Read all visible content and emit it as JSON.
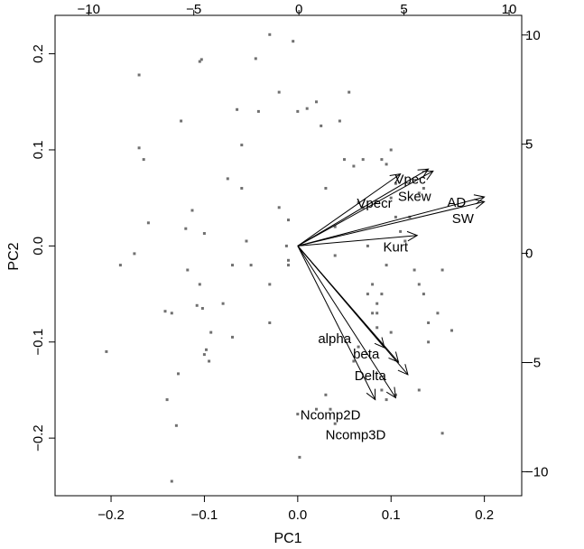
{
  "chart_data": {
    "type": "scatter",
    "subtype": "biplot",
    "xlabel": "PC1",
    "ylabel": "PC2",
    "xlim": [
      -0.26,
      0.24
    ],
    "ylim": [
      -0.26,
      0.24
    ],
    "top_axis_lim": [
      -11.6,
      10.6
    ],
    "right_axis_lim": [
      -11.1,
      10.9
    ],
    "x_ticks": [
      -0.2,
      -0.1,
      0.0,
      0.1,
      0.2
    ],
    "x_tick_labels": [
      "−0.2",
      "−0.1",
      "0.0",
      "0.1",
      "0.2"
    ],
    "y_ticks": [
      -0.2,
      -0.1,
      0.0,
      0.1,
      0.2
    ],
    "y_tick_labels": [
      "−0.2",
      "−0.1",
      "0.0",
      "0.1",
      "0.2"
    ],
    "top_ticks": [
      -10,
      -5,
      0,
      5,
      10
    ],
    "top_tick_labels": [
      "−10",
      "−5",
      "0",
      "5",
      "10"
    ],
    "right_ticks": [
      -10,
      -5,
      0,
      5,
      10
    ],
    "right_tick_labels": [
      "−10",
      "−5",
      "0",
      "5",
      "10"
    ],
    "grid": false,
    "point_color": "#707070",
    "arrow_color": "#000000",
    "points": [
      [
        -0.13,
        -0.187
      ],
      [
        -0.135,
        -0.245
      ],
      [
        -0.14,
        -0.16
      ],
      [
        -0.19,
        -0.02
      ],
      [
        -0.205,
        -0.11
      ],
      [
        -0.175,
        -0.008
      ],
      [
        -0.16,
        0.024
      ],
      [
        -0.165,
        0.09
      ],
      [
        -0.17,
        0.102
      ],
      [
        -0.17,
        0.178
      ],
      [
        -0.142,
        -0.068
      ],
      [
        -0.135,
        -0.07
      ],
      [
        -0.12,
        0.018
      ],
      [
        -0.125,
        0.13
      ],
      [
        -0.105,
        0.192
      ],
      [
        -0.103,
        0.194
      ],
      [
        -0.128,
        -0.133
      ],
      [
        -0.118,
        -0.025
      ],
      [
        -0.113,
        0.037
      ],
      [
        -0.108,
        -0.062
      ],
      [
        -0.102,
        -0.065
      ],
      [
        -0.105,
        -0.04
      ],
      [
        -0.1,
        -0.113
      ],
      [
        -0.095,
        -0.12
      ],
      [
        -0.093,
        -0.09
      ],
      [
        -0.098,
        -0.108
      ],
      [
        -0.1,
        0.013
      ],
      [
        -0.08,
        -0.06
      ],
      [
        -0.07,
        -0.095
      ],
      [
        -0.065,
        0.142
      ],
      [
        -0.06,
        0.06
      ],
      [
        -0.055,
        0.005
      ],
      [
        -0.07,
        -0.02
      ],
      [
        -0.075,
        0.07
      ],
      [
        -0.06,
        0.105
      ],
      [
        -0.05,
        -0.02
      ],
      [
        -0.045,
        0.195
      ],
      [
        -0.042,
        0.14
      ],
      [
        -0.03,
        -0.08
      ],
      [
        -0.03,
        0.22
      ],
      [
        -0.02,
        0.16
      ],
      [
        -0.02,
        0.04
      ],
      [
        -0.03,
        -0.04
      ],
      [
        -0.012,
        0.0
      ],
      [
        -0.01,
        -0.015
      ],
      [
        0.0,
        0.14
      ],
      [
        0.0,
        -0.175
      ],
      [
        0.01,
        0.143
      ],
      [
        0.02,
        0.15
      ],
      [
        0.03,
        0.06
      ],
      [
        0.04,
        0.02
      ],
      [
        0.045,
        0.13
      ],
      [
        0.04,
        -0.01
      ],
      [
        0.05,
        0.09
      ],
      [
        0.055,
        0.16
      ],
      [
        0.06,
        0.083
      ],
      [
        0.065,
        0.045
      ],
      [
        0.07,
        0.09
      ],
      [
        0.07,
        0.04
      ],
      [
        0.075,
        0.0
      ],
      [
        0.08,
        -0.04
      ],
      [
        0.075,
        -0.05
      ],
      [
        0.085,
        -0.07
      ],
      [
        0.09,
        0.09
      ],
      [
        0.095,
        0.085
      ],
      [
        0.1,
        0.1
      ],
      [
        0.1,
        0.05
      ],
      [
        0.105,
        0.03
      ],
      [
        0.11,
        0.015
      ],
      [
        0.095,
        -0.02
      ],
      [
        0.105,
        0.065
      ],
      [
        0.115,
        0.005
      ],
      [
        0.12,
        0.03
      ],
      [
        0.125,
        -0.025
      ],
      [
        0.13,
        0.055
      ],
      [
        0.135,
        -0.05
      ],
      [
        0.14,
        -0.1
      ],
      [
        0.135,
        0.06
      ],
      [
        0.15,
        -0.07
      ],
      [
        0.155,
        -0.025
      ],
      [
        0.14,
        -0.08
      ],
      [
        0.13,
        -0.04
      ],
      [
        0.165,
        -0.088
      ],
      [
        0.13,
        -0.15
      ],
      [
        0.155,
        -0.195
      ],
      [
        -0.01,
        -0.02
      ],
      [
        0.02,
        -0.17
      ],
      [
        0.03,
        -0.155
      ],
      [
        0.035,
        -0.17
      ],
      [
        0.04,
        -0.185
      ],
      [
        0.06,
        -0.12
      ],
      [
        0.065,
        -0.105
      ],
      [
        0.09,
        -0.15
      ],
      [
        0.095,
        -0.16
      ],
      [
        0.105,
        -0.155
      ],
      [
        0.08,
        -0.07
      ],
      [
        0.085,
        -0.06
      ],
      [
        0.09,
        -0.05
      ],
      [
        0.085,
        -0.085
      ],
      [
        0.1,
        -0.09
      ],
      [
        0.002,
        -0.22
      ],
      [
        -0.005,
        0.213
      ],
      [
        0.025,
        0.125
      ],
      [
        -0.01,
        0.027
      ]
    ],
    "loadings": [
      {
        "label": "AD",
        "x": 0.2,
        "y": 0.051
      },
      {
        "label": "SW",
        "x": 0.2,
        "y": 0.046
      },
      {
        "label": "Kurt",
        "x": 0.128,
        "y": 0.011
      },
      {
        "label": "Skew",
        "x": 0.145,
        "y": 0.078
      },
      {
        "label": "Vpec",
        "x": 0.14,
        "y": 0.08
      },
      {
        "label": "Vpecr",
        "x": 0.11,
        "y": 0.075
      },
      {
        "label": "alpha",
        "x": 0.093,
        "y": -0.106
      },
      {
        "label": "beta",
        "x": 0.108,
        "y": -0.121
      },
      {
        "label": "Delta",
        "x": 0.118,
        "y": -0.134
      },
      {
        "label": "Ncomp2D",
        "x": 0.083,
        "y": -0.16
      },
      {
        "label": "Ncomp3D",
        "x": 0.105,
        "y": -0.158
      }
    ],
    "loading_label_positions": [
      {
        "label": "AD",
        "x": 7.5,
        "y": 2.35
      },
      {
        "label": "SW",
        "x": 7.8,
        "y": 1.6
      },
      {
        "label": "Kurt",
        "x": 4.6,
        "y": 0.3
      },
      {
        "label": "Skew",
        "x": 5.5,
        "y": 2.6
      },
      {
        "label": "Vpec",
        "x": 5.3,
        "y": 3.4
      },
      {
        "label": "Vpecr",
        "x": 3.6,
        "y": 2.3
      },
      {
        "label": "alpha",
        "x": 1.7,
        "y": -3.9
      },
      {
        "label": "beta",
        "x": 3.2,
        "y": -4.6
      },
      {
        "label": "Delta",
        "x": 3.4,
        "y": -5.6
      },
      {
        "label": "Ncomp2D",
        "x": 1.5,
        "y": -7.4
      },
      {
        "label": "Ncomp3D",
        "x": 2.7,
        "y": -8.3
      }
    ]
  }
}
